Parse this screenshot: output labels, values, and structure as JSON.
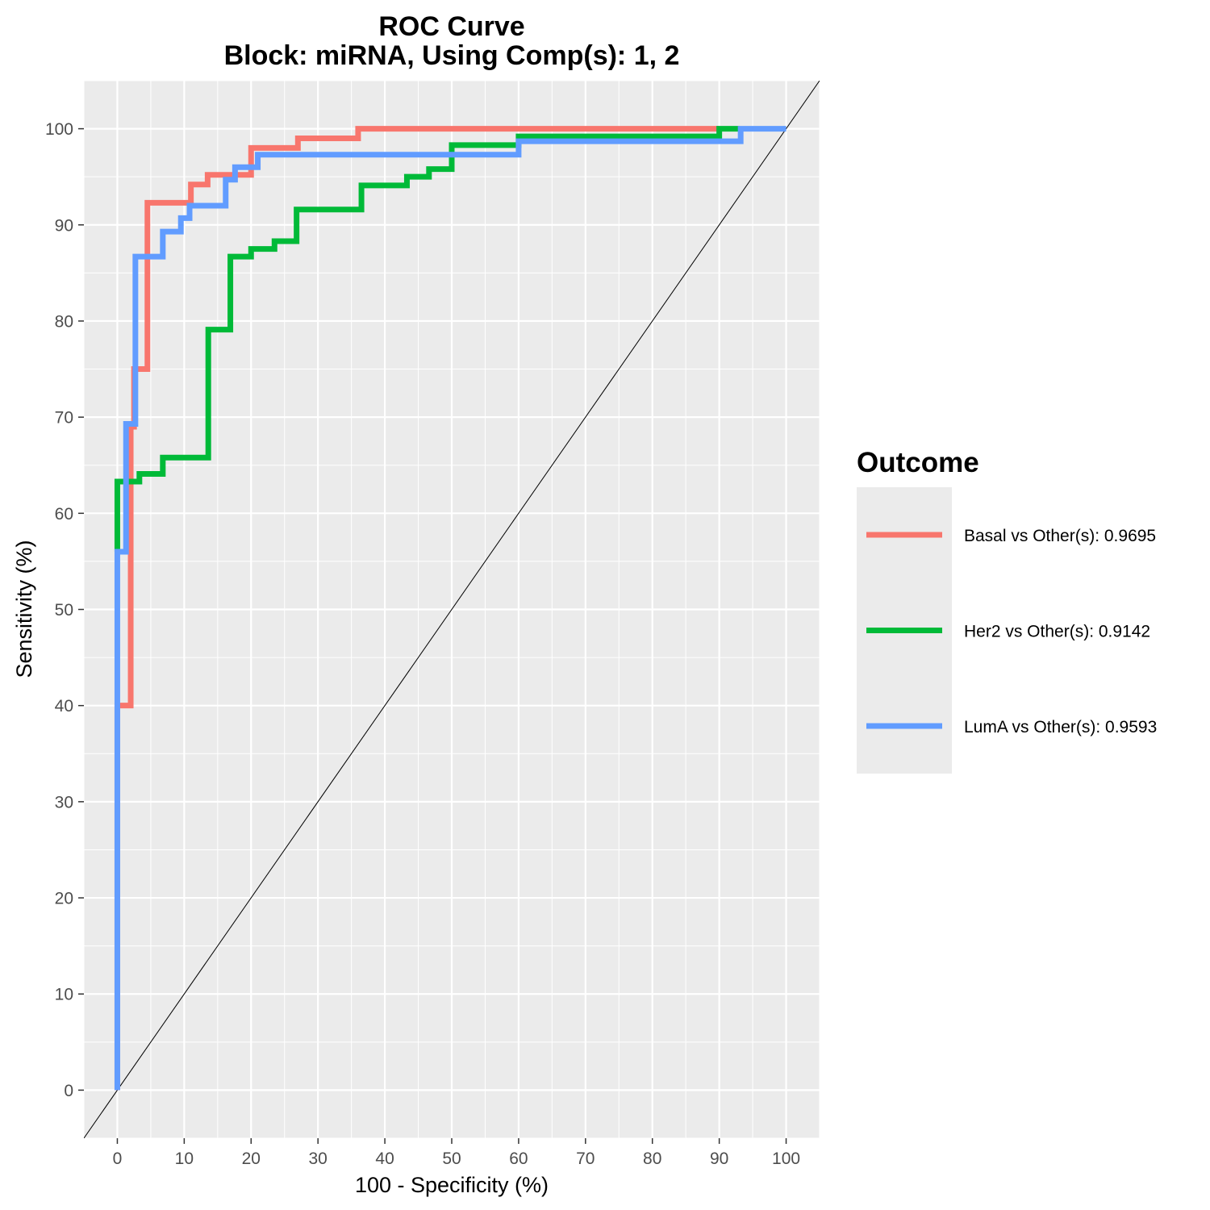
{
  "chart_data": {
    "type": "line",
    "title": "ROC Curve",
    "subtitle": "Block: miRNA, Using Comp(s): 1, 2",
    "xlabel": "100 - Specificity (%)",
    "ylabel": "Sensitivity (%)",
    "xlim": [
      -5,
      105
    ],
    "ylim": [
      -5,
      105
    ],
    "x_ticks": [
      "0",
      "10",
      "20",
      "30",
      "40",
      "50",
      "60",
      "70",
      "80",
      "90",
      "100"
    ],
    "y_ticks": [
      "0",
      "10",
      "20",
      "30",
      "40",
      "50",
      "60",
      "70",
      "80",
      "90",
      "100"
    ],
    "grid": true,
    "legend": {
      "title": "Outcome",
      "position": "right"
    },
    "reference_line": {
      "x": [
        -5,
        105
      ],
      "y": [
        -5,
        105
      ],
      "color": "#000000"
    },
    "series": [
      {
        "name": "Basal vs Other(s): 0.9695",
        "color": "#F8766D",
        "x": [
          0,
          0,
          2,
          2,
          2.5,
          2.5,
          4.5,
          4.5,
          11,
          11,
          13.5,
          13.5,
          20,
          20,
          27,
          27,
          36,
          36,
          90,
          90
        ],
        "y": [
          0,
          40,
          40,
          69,
          69,
          75,
          75,
          92.3,
          92.3,
          94.2,
          94.2,
          95.2,
          95.2,
          98,
          98,
          99,
          99,
          100,
          100,
          100
        ]
      },
      {
        "name": "Her2 vs Other(s): 0.9142",
        "color": "#00BA38",
        "x": [
          0,
          0,
          3.3,
          3.3,
          6.8,
          6.8,
          13.6,
          13.6,
          16.9,
          16.9,
          20,
          20,
          23.5,
          23.5,
          26.8,
          26.8,
          36.5,
          36.5,
          43.3,
          43.3,
          46.6,
          46.6,
          50,
          50,
          60,
          60,
          90,
          90,
          93
        ],
        "y": [
          56,
          63.3,
          63.3,
          64.1,
          64.1,
          65.8,
          65.8,
          79.1,
          79.1,
          86.7,
          86.7,
          87.5,
          87.5,
          88.3,
          88.3,
          91.6,
          91.6,
          94.1,
          94.1,
          95,
          95,
          95.8,
          95.8,
          98.3,
          98.3,
          99.2,
          99.2,
          100,
          100
        ]
      },
      {
        "name": "LumA vs Other(s): 0.9593",
        "color": "#619CFF",
        "x": [
          0,
          0,
          1.3,
          1.3,
          2.7,
          2.7,
          6.8,
          6.8,
          9.5,
          9.5,
          10.8,
          10.8,
          16.2,
          16.2,
          17.6,
          17.6,
          21,
          21,
          60,
          60,
          93.2,
          93.2,
          100
        ],
        "y": [
          0,
          56,
          56,
          69.3,
          69.3,
          86.7,
          86.7,
          89.3,
          89.3,
          90.7,
          90.7,
          92,
          92,
          94.7,
          94.7,
          96,
          96,
          97.3,
          97.3,
          98.7,
          98.7,
          100,
          100
        ]
      }
    ]
  }
}
